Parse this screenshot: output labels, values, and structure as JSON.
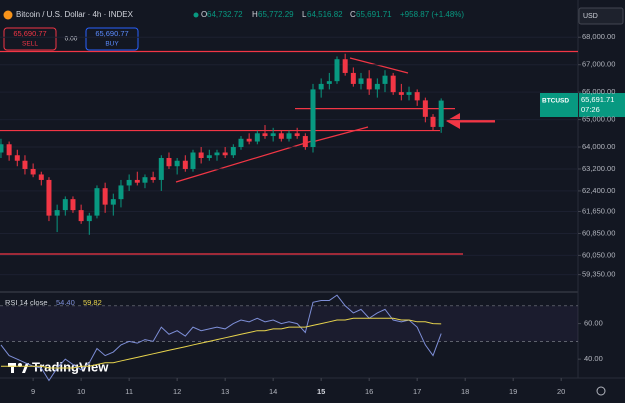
{
  "header": {
    "symbol": "Bitcoin / U.S. Dollar · 4h · INDEX",
    "open_label": "O",
    "open": "64,732.72",
    "high_label": "H",
    "high": "65,772.29",
    "low_label": "L",
    "low": "64,516.82",
    "close_label": "C",
    "close": "65,691.71",
    "change": "+958.87 (+1.48%)"
  },
  "trade": {
    "sell_price": "65,690.77",
    "sell": "SELL",
    "spread": "0.00",
    "buy_price": "65,690.77",
    "buy": "BUY"
  },
  "currency": "USD",
  "price_tag": {
    "symbol": "BTCUSD",
    "price": "65,691.71",
    "countdown": "07:26"
  },
  "logo": "TradingView",
  "chart_data": [
    {
      "type": "candlestick",
      "up_color": "#089981",
      "down_color": "#f23645",
      "x": [
        8.33,
        8.5,
        8.67,
        8.83,
        9,
        9.17,
        9.33,
        9.5,
        9.67,
        9.83,
        10,
        10.17,
        10.33,
        10.5,
        10.67,
        10.83,
        11,
        11.17,
        11.33,
        11.5,
        11.67,
        11.83,
        12,
        12.17,
        12.33,
        12.5,
        12.67,
        12.83,
        13,
        13.17,
        13.33,
        13.5,
        13.67,
        13.83,
        14,
        14.17,
        14.33,
        14.5,
        14.67,
        14.83,
        15,
        15.17,
        15.33,
        15.5,
        15.67,
        15.83,
        16,
        16.17,
        16.33,
        16.5,
        16.67,
        16.83,
        17,
        17.17,
        17.33,
        17.5
      ],
      "open": [
        63800,
        64100,
        63700,
        63500,
        63200,
        63000,
        62800,
        61500,
        61700,
        62100,
        61700,
        61300,
        61500,
        62500,
        61900,
        62100,
        62600,
        62800,
        62700,
        62900,
        62800,
        63600,
        63300,
        63500,
        63200,
        63800,
        63600,
        63700,
        63800,
        63700,
        64000,
        64300,
        64200,
        64500,
        64400,
        64500,
        64300,
        64500,
        64400,
        64000,
        66100,
        66300,
        66400,
        67200,
        66700,
        66300,
        66500,
        66100,
        66300,
        66600,
        66000,
        65900,
        66000,
        65700,
        65100,
        64732.72
      ],
      "high": [
        64300,
        64200,
        63900,
        63700,
        63400,
        63100,
        62900,
        61900,
        62200,
        62200,
        61900,
        61600,
        62600,
        62700,
        62300,
        62800,
        63000,
        63100,
        63000,
        63100,
        63700,
        63800,
        63600,
        63700,
        63900,
        64000,
        63900,
        63900,
        64000,
        64100,
        64400,
        64500,
        64600,
        64800,
        64700,
        64600,
        64600,
        64700,
        64500,
        66300,
        66500,
        66700,
        67300,
        67400,
        66900,
        66700,
        66800,
        66500,
        66800,
        66700,
        66300,
        66200,
        66100,
        65800,
        65200,
        65772.29
      ],
      "low": [
        63600,
        63500,
        63300,
        63000,
        62900,
        62600,
        61300,
        60900,
        61500,
        61600,
        61200,
        60800,
        61400,
        61600,
        61500,
        61800,
        62400,
        62600,
        62500,
        62700,
        62400,
        63200,
        63000,
        63100,
        63100,
        63400,
        63500,
        63500,
        63600,
        63600,
        63900,
        64100,
        64100,
        64300,
        64200,
        64200,
        64200,
        64300,
        63900,
        63800,
        65800,
        66100,
        66300,
        66600,
        66200,
        66100,
        65900,
        65800,
        66000,
        65900,
        65700,
        65700,
        65500,
        64900,
        64600,
        64516.82
      ],
      "close": [
        64100,
        63700,
        63500,
        63200,
        63000,
        62800,
        61500,
        61700,
        62100,
        61700,
        61300,
        61500,
        62500,
        61900,
        62100,
        62600,
        62800,
        62700,
        62900,
        62800,
        63600,
        63300,
        63500,
        63200,
        63800,
        63600,
        63700,
        63800,
        63700,
        64000,
        64300,
        64200,
        64500,
        64400,
        64500,
        64300,
        64500,
        64400,
        64000,
        66100,
        66300,
        66400,
        67200,
        66700,
        66300,
        66500,
        66100,
        66300,
        66600,
        66000,
        65900,
        66000,
        65700,
        65100,
        64732.72,
        65691.71
      ],
      "hlines": [
        67480,
        64600,
        60100,
        65400
      ],
      "hline_color": "#f23645",
      "xlim": [
        8.31,
        20.35
      ],
      "xticks": [
        9,
        10,
        11,
        12,
        13,
        14,
        15,
        16,
        17,
        18,
        19,
        20
      ],
      "ylim": [
        58716,
        69358
      ],
      "yticks": [
        {
          "value": 68000,
          "label": "68,000.00"
        },
        {
          "value": 67000,
          "label": "67,000.00"
        },
        {
          "value": 66000,
          "label": "66,000.00"
        },
        {
          "value": 65000,
          "label": "65,000.00"
        },
        {
          "value": 64000,
          "label": "64,000.00"
        },
        {
          "value": 63200,
          "label": "63,200.00"
        },
        {
          "value": 62400,
          "label": "62,400.00"
        },
        {
          "value": 61650,
          "label": "61,650.00"
        },
        {
          "value": 60850,
          "label": "60,850.00"
        },
        {
          "value": 60050,
          "label": "60,050.00"
        },
        {
          "value": 59350,
          "label": "59,350.00"
        }
      ]
    },
    {
      "type": "line",
      "title": "RSI 14 close",
      "ylim": [
        29.4,
        77.2
      ],
      "bands": [
        70,
        50
      ],
      "yticks": [
        {
          "value": 60,
          "label": "60.00"
        },
        {
          "value": 40,
          "label": "40.00"
        }
      ],
      "series": [
        {
          "color": "#7e8fd8",
          "last_label": "54.40",
          "values": [
            48,
            42,
            40,
            38,
            36,
            35,
            28,
            35,
            40,
            37,
            34,
            38,
            46,
            42,
            44,
            48,
            50,
            49,
            51,
            50,
            58,
            54,
            56,
            53,
            58,
            56,
            57,
            58,
            57,
            60,
            62,
            61,
            63,
            61,
            62,
            60,
            61,
            60,
            55,
            72,
            73,
            73,
            76,
            70,
            66,
            68,
            63,
            66,
            68,
            62,
            61,
            62,
            58,
            48,
            42,
            54.4
          ]
        },
        {
          "color": "#e8d44d",
          "last_label": "59.82",
          "values": [
            36,
            36,
            36,
            36,
            36,
            36,
            35,
            35,
            35,
            35,
            36,
            36,
            37,
            38,
            38,
            39,
            40,
            41,
            42,
            43,
            44,
            45,
            46,
            47,
            48,
            49,
            50,
            51,
            52,
            53,
            54,
            55,
            56,
            56,
            57,
            57,
            58,
            58,
            58,
            59,
            60,
            61,
            62,
            62,
            63,
            63,
            63,
            63,
            63,
            63,
            62,
            62,
            61,
            61,
            60,
            59.82
          ]
        }
      ]
    }
  ]
}
